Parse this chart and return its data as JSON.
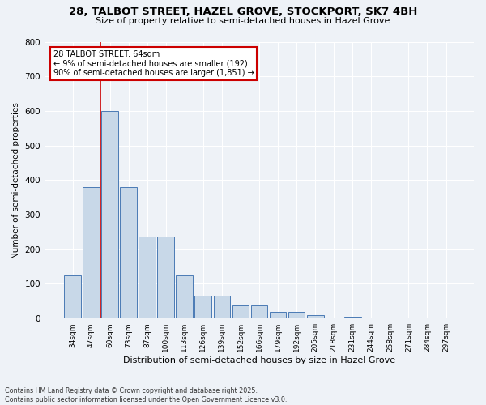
{
  "title_line1": "28, TALBOT STREET, HAZEL GROVE, STOCKPORT, SK7 4BH",
  "title_line2": "Size of property relative to semi-detached houses in Hazel Grove",
  "xlabel": "Distribution of semi-detached houses by size in Hazel Grove",
  "ylabel": "Number of semi-detached properties",
  "categories": [
    "34sqm",
    "47sqm",
    "60sqm",
    "73sqm",
    "87sqm",
    "100sqm",
    "113sqm",
    "126sqm",
    "139sqm",
    "152sqm",
    "166sqm",
    "179sqm",
    "192sqm",
    "205sqm",
    "218sqm",
    "231sqm",
    "244sqm",
    "258sqm",
    "271sqm",
    "284sqm",
    "297sqm"
  ],
  "values": [
    125,
    380,
    600,
    380,
    238,
    238,
    125,
    65,
    65,
    38,
    38,
    20,
    20,
    10,
    0,
    5,
    0,
    0,
    0,
    0,
    0
  ],
  "bar_color": "#c8d8e8",
  "bar_edge_color": "#4a7ab5",
  "vline_x": 1.5,
  "vline_color": "#cc0000",
  "annotation_text": "28 TALBOT STREET: 64sqm\n← 9% of semi-detached houses are smaller (192)\n90% of semi-detached houses are larger (1,851) →",
  "annotation_box_color": "#cc0000",
  "background_color": "#eef2f7",
  "footer_text": "Contains HM Land Registry data © Crown copyright and database right 2025.\nContains public sector information licensed under the Open Government Licence v3.0.",
  "ylim": [
    0,
    800
  ],
  "yticks": [
    0,
    100,
    200,
    300,
    400,
    500,
    600,
    700,
    800
  ]
}
